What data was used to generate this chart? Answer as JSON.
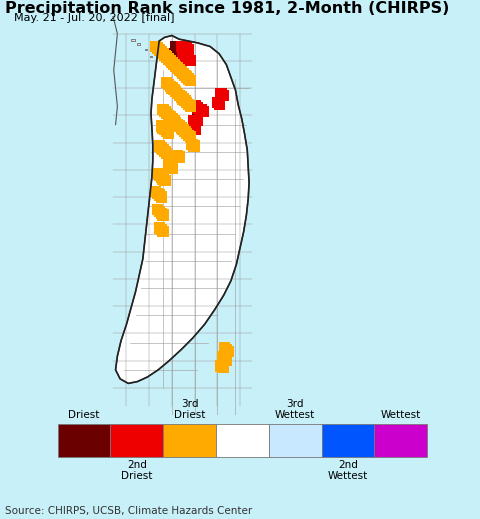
{
  "title": "Precipitation Rank since 1981, 2-Month (CHIRPS)",
  "subtitle": "May. 21 - Jul. 20, 2022 [final]",
  "source": "Source: CHIRPS, UCSB, Climate Hazards Center",
  "background_color": "#c8f0f8",
  "legend_bg": "#ffffff",
  "legend_colors": [
    "#6b0000",
    "#ee0000",
    "#ffaa00",
    "#ffffff",
    "#c8e8ff",
    "#0055ff",
    "#cc00cc"
  ],
  "title_fontsize": 11.5,
  "subtitle_fontsize": 8,
  "source_fontsize": 7.5,
  "map_land_color": "#ffffff",
  "ocean_color": "#c8f0f8",
  "border_color": "#555555",
  "map_xlim": [
    79.3,
    82.2
  ],
  "map_ylim": [
    5.7,
    10.1
  ],
  "fig_width": 4.8,
  "fig_height": 5.19
}
